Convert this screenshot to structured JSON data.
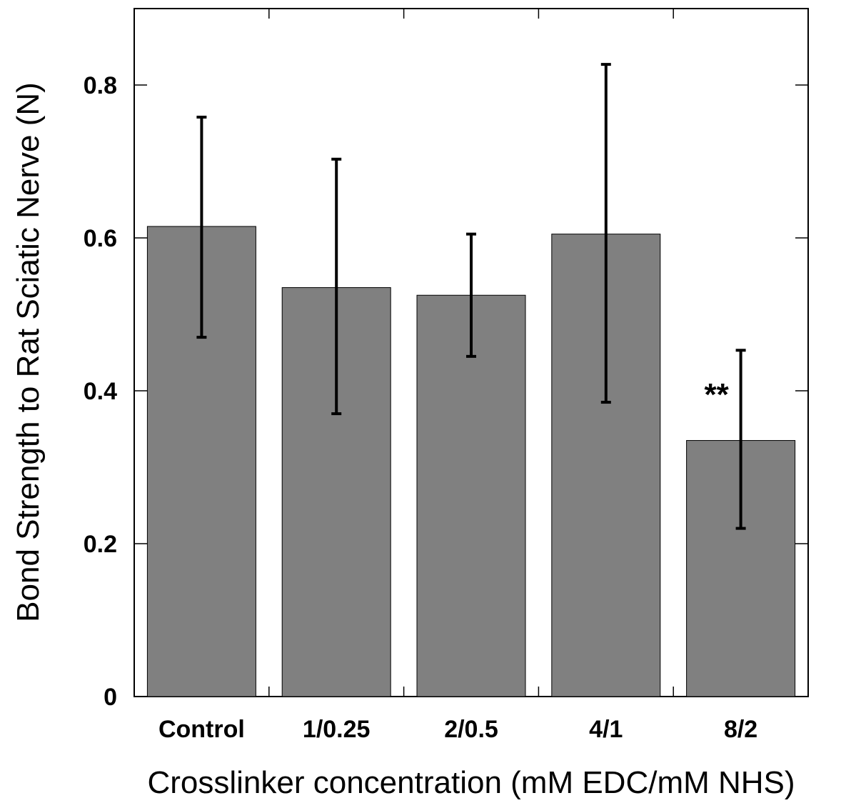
{
  "chart_data": {
    "type": "bar",
    "categories": [
      "Control",
      "1/0.25",
      "2/0.5",
      "4/1",
      "8/2"
    ],
    "values": [
      0.615,
      0.535,
      0.525,
      0.605,
      0.335
    ],
    "error_low": [
      0.47,
      0.37,
      0.445,
      0.385,
      0.22
    ],
    "error_high": [
      0.758,
      0.703,
      0.605,
      0.827,
      0.453
    ],
    "annotations": [
      {
        "category": "8/2",
        "text": "**"
      }
    ],
    "xlabel": "Crosslinker concentration (mM EDC/mM NHS)",
    "ylabel": "Bond Strength to Rat Sciatic Nerve (N)",
    "ylim": [
      0,
      0.9
    ],
    "yticks": [
      0,
      0.2,
      0.4,
      0.6,
      0.8
    ],
    "ytick_labels": [
      "0",
      "0.2",
      "0.4",
      "0.6",
      "0.8"
    ],
    "grid": false,
    "colors": {
      "bar": "#808080",
      "bar_edge": "#000000",
      "error": "#000000"
    }
  }
}
